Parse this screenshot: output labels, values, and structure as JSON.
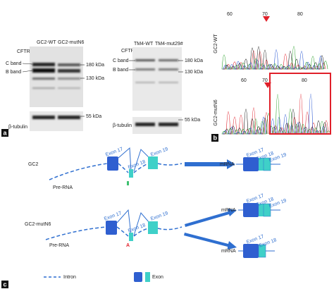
{
  "panel_a": {
    "label": "a",
    "blots": [
      {
        "lanes": [
          "GC2-WT",
          "GC2-mutN6"
        ],
        "protein": "CFTR",
        "bands": [
          "C band",
          "B band"
        ],
        "markers": [
          "180 kDa",
          "130 kDa"
        ],
        "loading_label": "β-tubulin",
        "loading_marker": "55 kDa"
      },
      {
        "lanes": [
          "TM4-WT",
          "TM4-mut29#"
        ],
        "protein": "CFTR",
        "bands": [
          "C band",
          "B band"
        ],
        "markers": [
          "180 kDa",
          "130 kDa"
        ],
        "loading_label": "β-tubulin",
        "loading_marker": "55 kDa"
      }
    ]
  },
  "panel_b": {
    "label": "b",
    "traces": [
      {
        "name": "GC2-WT",
        "positions": [
          60,
          70,
          80
        ]
      },
      {
        "name": "GC2-mutN6",
        "positions": [
          60,
          70,
          80
        ]
      }
    ]
  },
  "panel_c": {
    "label": "c",
    "rows": [
      {
        "name": "GC2",
        "pre_rna": "Pre-RNA",
        "exons": [
          "Exon 17",
          "Exon 18",
          "Exon 19"
        ],
        "mrna": [
          {
            "label": "mRNA",
            "exons": [
              "Exon 17",
              "Exon 18",
              "Exon 19"
            ]
          }
        ]
      },
      {
        "name": "GC2-mutN6",
        "pre_rna": "Pre-RNA",
        "mutation": "A",
        "exons": [
          "Exon 17",
          "Exon 18",
          "Exon 19"
        ],
        "mrna": [
          {
            "label": "mRNA",
            "exons": [
              "Exon 17",
              "Exon 18",
              "Exon 19"
            ]
          },
          {
            "label": "mRNA",
            "exons": [
              "Exon 17",
              "Exon 18"
            ]
          }
        ]
      }
    ],
    "legend": [
      "Intron",
      "Exon"
    ]
  }
}
